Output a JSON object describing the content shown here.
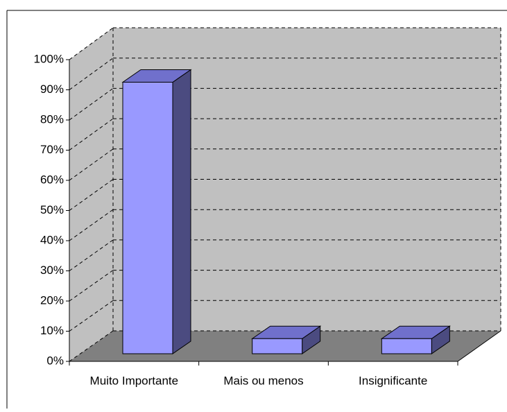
{
  "chart_data": {
    "type": "bar3d",
    "categories": [
      "Muito Importante",
      "Mais ou menos",
      "Insignificante"
    ],
    "values": [
      90,
      5,
      5
    ],
    "color": "#9999ff",
    "ylim": [
      0,
      100
    ],
    "yticks": [
      {
        "value": 0,
        "label": "0%"
      },
      {
        "value": 10,
        "label": "10%"
      },
      {
        "value": 20,
        "label": "20%"
      },
      {
        "value": 30,
        "label": "30%"
      },
      {
        "value": 40,
        "label": "40%"
      },
      {
        "value": 50,
        "label": "50%"
      },
      {
        "value": 60,
        "label": "60%"
      },
      {
        "value": 70,
        "label": "70%"
      },
      {
        "value": 80,
        "label": "80%"
      },
      {
        "value": 90,
        "label": "90%"
      },
      {
        "value": 100,
        "label": "100%"
      }
    ],
    "grid": true
  }
}
